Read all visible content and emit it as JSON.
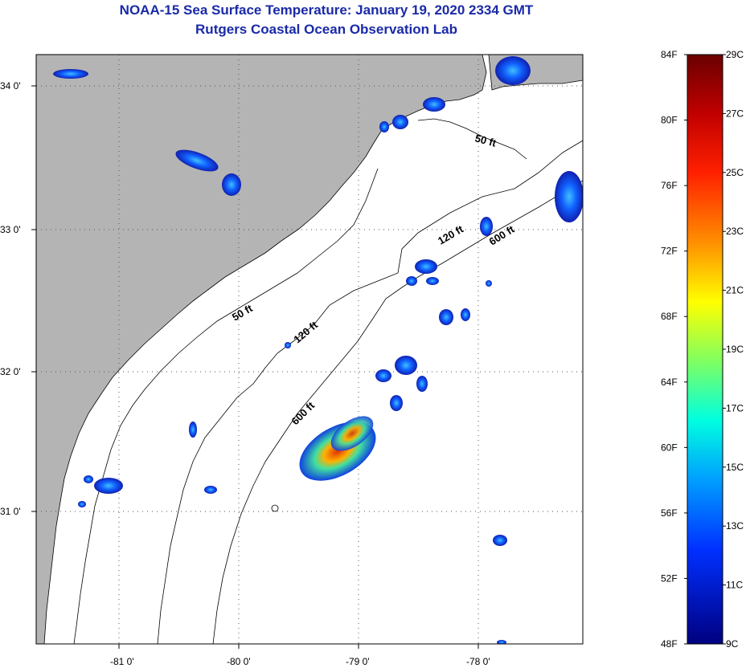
{
  "header": {
    "title_line1": "NOAA-15 Sea Surface Temperature:  January 19, 2020 2334 GMT",
    "title_line2": "Rutgers Coastal Ocean Observation Lab"
  },
  "map": {
    "lon_ticks": [
      "-81 0'",
      "-80 0'",
      "-79 0'",
      "-78 0'"
    ],
    "lat_ticks": [
      "34 0'",
      "33 0'",
      "32 0'",
      "31 0'"
    ],
    "contours": {
      "c50_north": "50 ft",
      "c50_south": "50 ft",
      "c120_north": "120 ft",
      "c120_south": "120 ft",
      "c600_north": "600 ft",
      "c600_south": "600 ft"
    },
    "colors": {
      "land": "#b4b4b4",
      "ocean": "#ffffff",
      "cloud": "#ffffff"
    }
  },
  "colorbar": {
    "f_labels": [
      "84F",
      "80F",
      "76F",
      "72F",
      "68F",
      "64F",
      "60F",
      "56F",
      "52F",
      "48F"
    ],
    "c_labels": [
      "29C",
      "27C",
      "25C",
      "23C",
      "21C",
      "19C",
      "17C",
      "15C",
      "13C",
      "11C",
      "9C"
    ],
    "gradient_colors": [
      "#7a0000",
      "#d40000",
      "#ff4000",
      "#ffa000",
      "#ffff00",
      "#80ff60",
      "#00ffff",
      "#0080ff",
      "#0000ff",
      "#000080"
    ]
  }
}
